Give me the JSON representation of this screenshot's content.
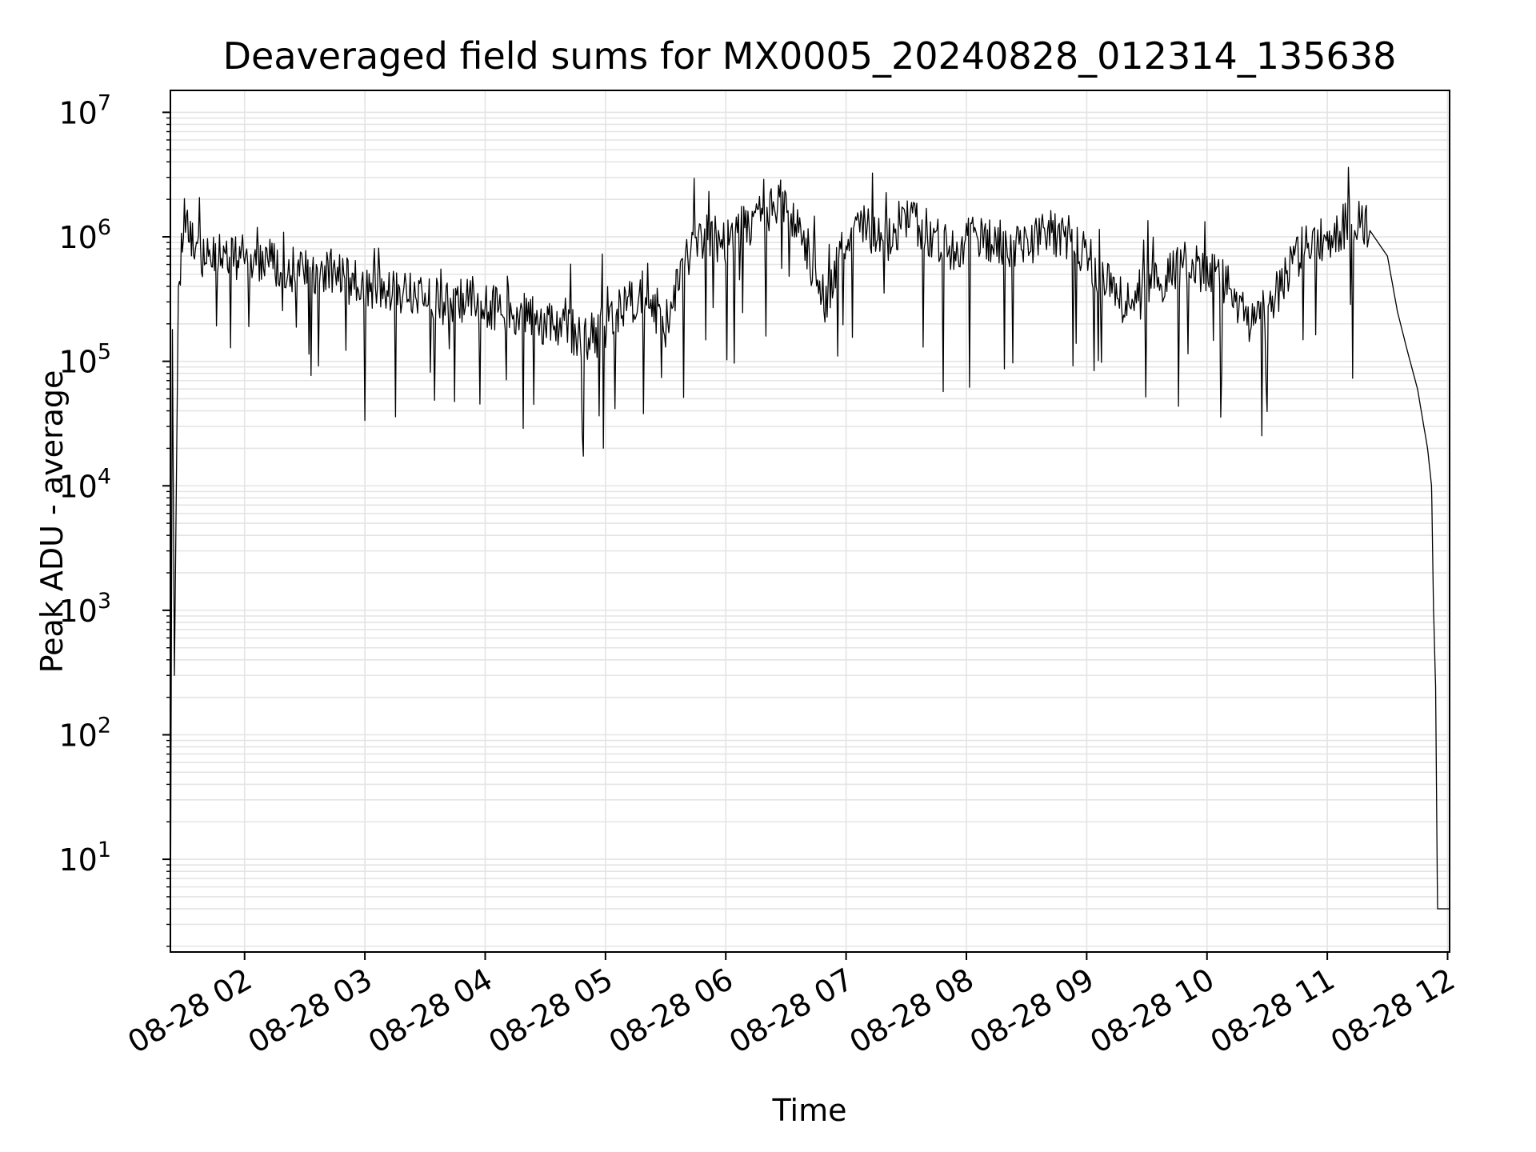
{
  "chart_data": {
    "type": "line",
    "title": "Deaveraged field sums for MX0005_20240828_012314_135638",
    "xlabel": "Time",
    "ylabel": "Peak ADU - average",
    "yscale": "log",
    "ylim": [
      1.8,
      15000000
    ],
    "y_ticks": [
      {
        "base": "10",
        "exp": "1",
        "value": 10
      },
      {
        "base": "10",
        "exp": "2",
        "value": 100
      },
      {
        "base": "10",
        "exp": "3",
        "value": 1000
      },
      {
        "base": "10",
        "exp": "4",
        "value": 10000
      },
      {
        "base": "10",
        "exp": "5",
        "value": 100000
      },
      {
        "base": "10",
        "exp": "6",
        "value": 1000000
      },
      {
        "base": "10",
        "exp": "7",
        "value": 10000000
      }
    ],
    "xlim": [
      "2024-08-28T01:23",
      "2024-08-28T12:01"
    ],
    "x_ticks": [
      {
        "label": "08-28 02",
        "time": "2024-08-28T02:00"
      },
      {
        "label": "08-28 03",
        "time": "2024-08-28T03:00"
      },
      {
        "label": "08-28 04",
        "time": "2024-08-28T04:00"
      },
      {
        "label": "08-28 05",
        "time": "2024-08-28T05:00"
      },
      {
        "label": "08-28 06",
        "time": "2024-08-28T06:00"
      },
      {
        "label": "08-28 07",
        "time": "2024-08-28T07:00"
      },
      {
        "label": "08-28 08",
        "time": "2024-08-28T08:00"
      },
      {
        "label": "08-28 09",
        "time": "2024-08-28T09:00"
      },
      {
        "label": "08-28 10",
        "time": "2024-08-28T10:00"
      },
      {
        "label": "08-28 11",
        "time": "2024-08-28T11:00"
      },
      {
        "label": "08-28 12",
        "time": "2024-08-28T12:00"
      }
    ],
    "grid": "on (major and minor)",
    "line_color": "#000000",
    "grid_color": "#e4e4e4",
    "series": [
      {
        "x": [
          "2024-08-28T01:23",
          "2024-08-28T01:24",
          "2024-08-28T01:25",
          "2024-08-28T01:27",
          "2024-08-28T01:30",
          "2024-08-28T01:35",
          "2024-08-28T01:40",
          "2024-08-28T01:45",
          "2024-08-28T01:50",
          "2024-08-28T01:55",
          "2024-08-28T02:00",
          "2024-08-28T02:10",
          "2024-08-28T02:20",
          "2024-08-28T02:30",
          "2024-08-28T02:40",
          "2024-08-28T02:50",
          "2024-08-28T03:00",
          "2024-08-28T03:10",
          "2024-08-28T03:20",
          "2024-08-28T03:30",
          "2024-08-28T03:40",
          "2024-08-28T03:50",
          "2024-08-28T04:00",
          "2024-08-28T04:10",
          "2024-08-28T04:20",
          "2024-08-28T04:30",
          "2024-08-28T04:40",
          "2024-08-28T04:50",
          "2024-08-28T05:00",
          "2024-08-28T05:10",
          "2024-08-28T05:20",
          "2024-08-28T05:30",
          "2024-08-28T05:40",
          "2024-08-28T05:50",
          "2024-08-28T06:00",
          "2024-08-28T06:10",
          "2024-08-28T06:20",
          "2024-08-28T06:30",
          "2024-08-28T06:40",
          "2024-08-28T06:50",
          "2024-08-28T07:00",
          "2024-08-28T07:10",
          "2024-08-28T07:20",
          "2024-08-28T07:30",
          "2024-08-28T07:40",
          "2024-08-28T07:50",
          "2024-08-28T08:00",
          "2024-08-28T08:10",
          "2024-08-28T08:20",
          "2024-08-28T08:30",
          "2024-08-28T08:40",
          "2024-08-28T08:50",
          "2024-08-28T09:00",
          "2024-08-28T09:10",
          "2024-08-28T09:20",
          "2024-08-28T09:30",
          "2024-08-28T09:40",
          "2024-08-28T09:50",
          "2024-08-28T10:00",
          "2024-08-28T10:10",
          "2024-08-28T10:20",
          "2024-08-28T10:30",
          "2024-08-28T10:40",
          "2024-08-28T10:50",
          "2024-08-28T11:00",
          "2024-08-28T11:10",
          "2024-08-28T11:20",
          "2024-08-28T11:30",
          "2024-08-28T11:35",
          "2024-08-28T11:40",
          "2024-08-28T11:45",
          "2024-08-28T11:50",
          "2024-08-28T11:52",
          "2024-08-28T11:53",
          "2024-08-28T11:54",
          "2024-08-28T11:55",
          "2024-08-28T11:57",
          "2024-08-28T12:01"
        ],
        "y": [
          2,
          180000,
          300,
          400000,
          1600000,
          900000,
          600000,
          700000,
          650000,
          700000,
          680000,
          650000,
          600000,
          500000,
          550000,
          450000,
          400000,
          380000,
          350000,
          300000,
          320000,
          300000,
          280000,
          260000,
          230000,
          200000,
          180000,
          150000,
          190000,
          300000,
          350000,
          200000,
          700000,
          1000000,
          900000,
          1200000,
          1500000,
          2000000,
          800000,
          300000,
          1000000,
          1200000,
          900000,
          1500000,
          1100000,
          800000,
          900000,
          1000000,
          900000,
          800000,
          1100000,
          1000000,
          700000,
          400000,
          300000,
          350000,
          500000,
          600000,
          500000,
          450000,
          200000,
          250000,
          500000,
          900000,
          1000000,
          1300000,
          1200000,
          700000,
          250000,
          120000,
          60000,
          20000,
          10000,
          1000,
          250,
          4,
          4,
          4
        ]
      }
    ]
  }
}
